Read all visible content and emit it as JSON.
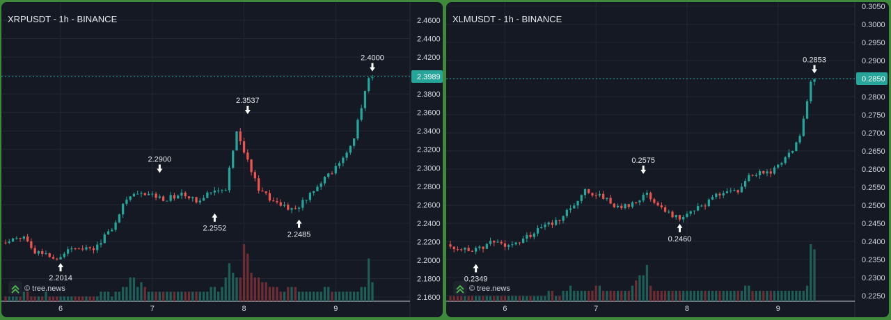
{
  "colors": {
    "up": "#26a69a",
    "down": "#ef5350",
    "grid": "#232733",
    "price_line": "#26a69a",
    "price_label_bg": "#26a69a",
    "background": "#151924",
    "text": "#d1d4dc"
  },
  "watermark": {
    "text": "© tree.news",
    "icon": "tree-news-chevron-icon"
  },
  "chart_data": [
    {
      "type": "candlestick",
      "title": "XRPUSDT - 1h - BINANCE",
      "xlabel": "",
      "ylabel": "",
      "ylim": [
        2.155,
        2.475
      ],
      "y_ticks": [
        "2.4600",
        "2.4400",
        "2.4200",
        "2.4000",
        "2.3800",
        "2.3600",
        "2.3400",
        "2.3200",
        "2.3000",
        "2.2800",
        "2.2600",
        "2.2400",
        "2.2200",
        "2.2000",
        "2.1800",
        "2.1600"
      ],
      "x_ticks": [
        "6",
        "7",
        "8",
        "9"
      ],
      "x_tick_positions": [
        15,
        40,
        65,
        90
      ],
      "n_candles": 101,
      "current_price": "2.3989",
      "keypoints": [
        [
          0,
          2.219
        ],
        [
          6,
          2.226
        ],
        [
          9,
          2.21
        ],
        [
          15,
          2.203
        ],
        [
          20,
          2.215
        ],
        [
          25,
          2.212
        ],
        [
          30,
          2.235
        ],
        [
          34,
          2.268
        ],
        [
          40,
          2.272
        ],
        [
          44,
          2.266
        ],
        [
          49,
          2.271
        ],
        [
          53,
          2.264
        ],
        [
          57,
          2.276
        ],
        [
          61,
          2.278
        ],
        [
          64,
          2.34
        ],
        [
          70,
          2.275
        ],
        [
          75,
          2.262
        ],
        [
          80,
          2.254
        ],
        [
          87,
          2.286
        ],
        [
          92,
          2.303
        ],
        [
          96,
          2.333
        ],
        [
          100,
          2.398
        ]
      ],
      "volume": [
        1,
        1,
        1,
        1,
        1,
        2,
        2,
        1,
        1,
        1,
        1,
        2,
        1,
        1,
        1,
        1,
        1,
        1,
        1,
        1,
        1,
        1,
        1,
        1,
        1,
        1,
        2,
        2,
        2,
        1,
        2,
        2,
        3,
        3,
        5,
        5,
        3,
        4,
        3,
        2,
        2,
        2,
        2,
        2,
        2,
        2,
        2,
        2,
        2,
        2,
        2,
        2,
        2,
        2,
        2,
        2,
        3,
        3,
        2,
        3,
        5,
        8,
        6,
        5,
        5,
        12,
        10,
        6,
        5,
        5,
        4,
        4,
        3,
        3,
        3,
        2,
        2,
        3,
        3,
        3,
        2,
        2,
        2,
        2,
        2,
        2,
        2,
        3,
        3,
        2,
        2,
        2,
        2,
        2,
        2,
        2,
        2,
        3,
        3,
        9,
        4
      ],
      "annotations": [
        {
          "label": "2.2014",
          "idx": 15,
          "price": 2.2014,
          "dir": "below"
        },
        {
          "label": "2.2900",
          "idx": 42,
          "price": 2.29,
          "dir": "above"
        },
        {
          "label": "2.2552",
          "idx": 57,
          "price": 2.2552,
          "dir": "below"
        },
        {
          "label": "2.3537",
          "idx": 66,
          "price": 2.3537,
          "dir": "above"
        },
        {
          "label": "2.2485",
          "idx": 80,
          "price": 2.2485,
          "dir": "below"
        },
        {
          "label": "2.4000",
          "idx": 100,
          "price": 2.4,
          "dir": "above"
        }
      ]
    },
    {
      "type": "candlestick",
      "title": "XLMUSDT - 1h - BINANCE",
      "xlabel": "",
      "ylabel": "",
      "ylim": [
        0.2215,
        0.306
      ],
      "y_ticks": [
        "0.3050",
        "0.3000",
        "0.2950",
        "0.2900",
        "0.2850",
        "0.2800",
        "0.2750",
        "0.2700",
        "0.2650",
        "0.2600",
        "0.2550",
        "0.2500",
        "0.2450",
        "0.2400",
        "0.2350",
        "0.2300",
        "0.2250"
      ],
      "x_ticks": [
        "6",
        "7",
        "8",
        "9"
      ],
      "x_tick_positions": [
        15,
        40,
        65,
        90
      ],
      "n_candles": 101,
      "current_price": "0.2850",
      "keypoints": [
        [
          0,
          0.2392
        ],
        [
          7,
          0.237
        ],
        [
          12,
          0.2395
        ],
        [
          18,
          0.239
        ],
        [
          24,
          0.2425
        ],
        [
          32,
          0.247
        ],
        [
          38,
          0.2542
        ],
        [
          43,
          0.252
        ],
        [
          48,
          0.249
        ],
        [
          52,
          0.2515
        ],
        [
          55,
          0.253
        ],
        [
          60,
          0.248
        ],
        [
          64,
          0.2468
        ],
        [
          68,
          0.2485
        ],
        [
          74,
          0.2525
        ],
        [
          80,
          0.254
        ],
        [
          84,
          0.2588
        ],
        [
          89,
          0.2595
        ],
        [
          93,
          0.2625
        ],
        [
          97,
          0.2685
        ],
        [
          100,
          0.2848
        ]
      ],
      "volume": [
        1,
        1,
        1,
        1,
        1,
        1,
        1,
        1,
        1,
        1,
        1,
        1,
        1,
        1,
        1,
        1,
        1,
        1,
        1,
        1,
        1,
        1,
        1,
        1,
        1,
        1,
        1,
        2,
        2,
        1,
        1,
        2,
        2,
        3,
        2,
        2,
        2,
        2,
        2,
        2,
        3,
        3,
        2,
        2,
        2,
        2,
        2,
        2,
        2,
        2,
        3,
        4,
        5,
        5,
        7,
        3,
        2,
        2,
        2,
        2,
        2,
        2,
        2,
        2,
        2,
        2,
        2,
        2,
        2,
        2,
        2,
        2,
        2,
        2,
        2,
        2,
        2,
        2,
        2,
        2,
        2,
        3,
        3,
        2,
        2,
        2,
        2,
        2,
        2,
        2,
        2,
        2,
        2,
        2,
        2,
        2,
        2,
        2,
        3,
        11,
        10
      ],
      "annotations": [
        {
          "label": "0.2349",
          "idx": 7,
          "price": 0.2349,
          "dir": "below"
        },
        {
          "label": "0.2575",
          "idx": 53,
          "price": 0.2575,
          "dir": "above"
        },
        {
          "label": "0.2460",
          "idx": 63,
          "price": 0.246,
          "dir": "below"
        },
        {
          "label": "0.2853",
          "idx": 100,
          "price": 0.2853,
          "dir": "above"
        }
      ]
    }
  ]
}
